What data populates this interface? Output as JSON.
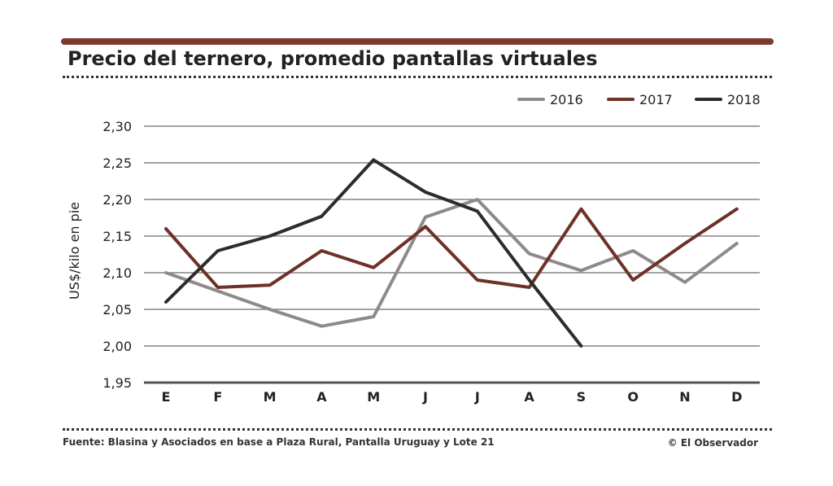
{
  "title": "Precio del ternero, promedio pantallas virtuales",
  "source": "Fuente: Blasina y Asociados en base a Plaza Rural, Pantalla Uruguay y Lote 21",
  "credit": "© El Observador",
  "colors": {
    "bar": "#7a3a30",
    "s2016": "#8f8a89",
    "s2017": "#6e3129",
    "s2018": "#2c2c2c"
  },
  "chart_data": {
    "type": "line",
    "title": "Precio del ternero, promedio pantallas virtuales",
    "xlabel": "",
    "ylabel": "US$/kilo en pie",
    "categories": [
      "E",
      "F",
      "M",
      "A",
      "M",
      "J",
      "J",
      "A",
      "S",
      "O",
      "N",
      "D"
    ],
    "yticks": [
      "1,95",
      "2,00",
      "2,05",
      "2,10",
      "2,15",
      "2,20",
      "2,25",
      "2,30"
    ],
    "ylim": [
      1.95,
      2.3
    ],
    "grid": true,
    "legend": "top-right",
    "series": [
      {
        "name": "2016",
        "color": "#8f8a89",
        "values": [
          2.1,
          2.075,
          2.05,
          2.027,
          2.04,
          2.176,
          2.2,
          2.126,
          2.103,
          2.13,
          2.087,
          2.14
        ]
      },
      {
        "name": "2017",
        "color": "#6e3129",
        "values": [
          2.16,
          2.08,
          2.083,
          2.13,
          2.107,
          2.163,
          2.09,
          2.08,
          2.187,
          2.09,
          2.14,
          2.187
        ]
      },
      {
        "name": "2018",
        "color": "#2c2c2c",
        "values": [
          2.06,
          2.13,
          2.15,
          2.177,
          2.254,
          2.21,
          2.184,
          2.09,
          2.0,
          null,
          null,
          null
        ]
      }
    ]
  }
}
